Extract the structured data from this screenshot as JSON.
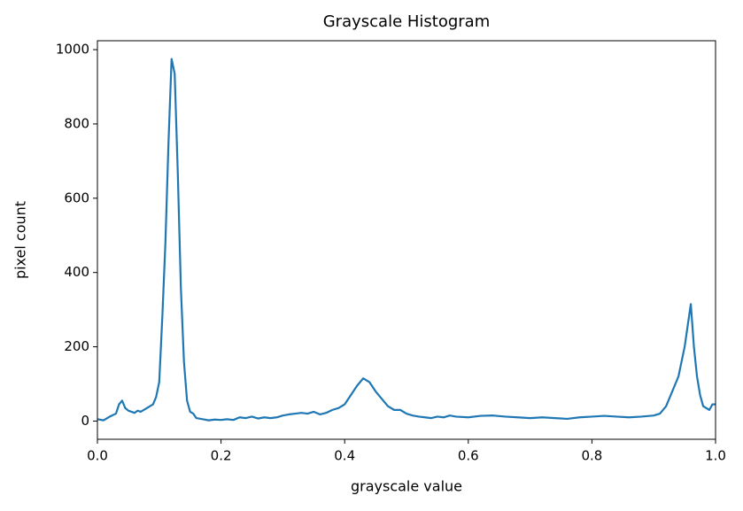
{
  "chart_data": {
    "type": "line",
    "title": "Grayscale Histogram",
    "xlabel": "grayscale value",
    "ylabel": "pixel count",
    "x": [
      0.0,
      0.01,
      0.02,
      0.03,
      0.035,
      0.04,
      0.045,
      0.05,
      0.06,
      0.065,
      0.07,
      0.08,
      0.09,
      0.095,
      0.1,
      0.105,
      0.11,
      0.115,
      0.12,
      0.125,
      0.13,
      0.135,
      0.14,
      0.145,
      0.15,
      0.155,
      0.16,
      0.17,
      0.18,
      0.19,
      0.2,
      0.21,
      0.22,
      0.23,
      0.24,
      0.25,
      0.26,
      0.27,
      0.28,
      0.29,
      0.3,
      0.31,
      0.32,
      0.33,
      0.34,
      0.35,
      0.36,
      0.37,
      0.38,
      0.39,
      0.4,
      0.41,
      0.42,
      0.43,
      0.44,
      0.45,
      0.46,
      0.47,
      0.48,
      0.49,
      0.5,
      0.51,
      0.52,
      0.53,
      0.54,
      0.55,
      0.56,
      0.57,
      0.58,
      0.6,
      0.62,
      0.64,
      0.66,
      0.68,
      0.7,
      0.72,
      0.74,
      0.76,
      0.78,
      0.8,
      0.82,
      0.84,
      0.86,
      0.88,
      0.9,
      0.91,
      0.92,
      0.93,
      0.94,
      0.95,
      0.96,
      0.965,
      0.97,
      0.975,
      0.98,
      0.99,
      0.995,
      1.0
    ],
    "series": [
      {
        "name": "pixel count",
        "color": "#1f77b4",
        "values": [
          5,
          2,
          12,
          20,
          45,
          55,
          35,
          28,
          22,
          28,
          25,
          35,
          45,
          65,
          105,
          280,
          480,
          750,
          975,
          935,
          670,
          360,
          160,
          55,
          25,
          20,
          8,
          5,
          2,
          4,
          3,
          5,
          3,
          10,
          8,
          12,
          7,
          10,
          8,
          10,
          15,
          18,
          20,
          22,
          20,
          25,
          18,
          22,
          30,
          35,
          45,
          70,
          95,
          115,
          105,
          80,
          60,
          40,
          30,
          30,
          20,
          15,
          12,
          10,
          8,
          12,
          10,
          15,
          12,
          10,
          14,
          15,
          12,
          10,
          8,
          10,
          8,
          6,
          10,
          12,
          14,
          12,
          10,
          12,
          15,
          20,
          40,
          80,
          120,
          200,
          315,
          200,
          120,
          70,
          40,
          30,
          45,
          45
        ]
      }
    ],
    "xlim": [
      0,
      1
    ],
    "ylim": [
      -49,
      1024
    ],
    "xticks": [
      {
        "value": 0,
        "label": "0.0"
      },
      0.2,
      0.4,
      0.6,
      0.8,
      {
        "value": 1,
        "label": "1.0"
      }
    ],
    "yticks": [
      0,
      200,
      400,
      600,
      800,
      1000
    ]
  }
}
